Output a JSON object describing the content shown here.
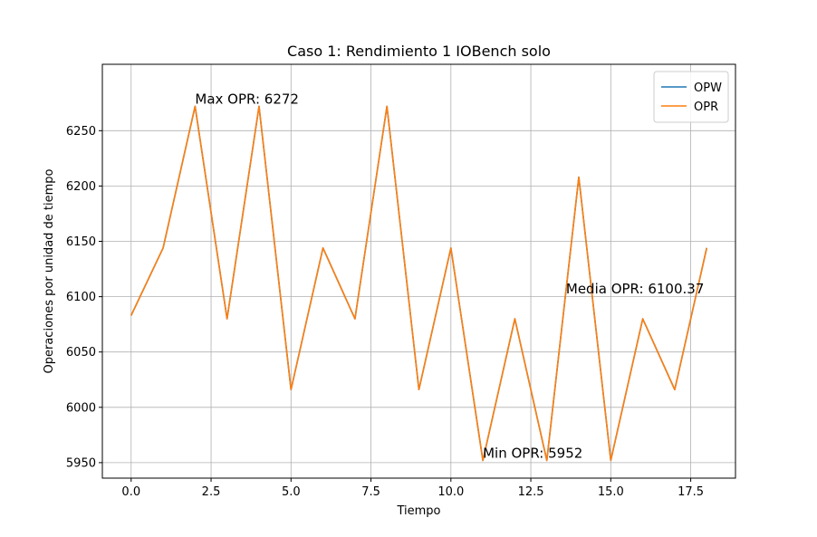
{
  "chart_data": {
    "type": "line",
    "title": "Caso 1: Rendimiento 1 IOBench solo",
    "xlabel": "Tiempo",
    "ylabel": "Operaciones por unidad de tiempo",
    "xlim": [
      -0.9,
      18.9
    ],
    "ylim": [
      5936,
      6310
    ],
    "xticks": [
      0.0,
      2.5,
      5.0,
      7.5,
      10.0,
      12.5,
      15.0,
      17.5
    ],
    "xtick_labels": [
      "0.0",
      "2.5",
      "5.0",
      "7.5",
      "10.0",
      "12.5",
      "15.0",
      "17.5"
    ],
    "yticks": [
      5950,
      6000,
      6050,
      6100,
      6150,
      6200,
      6250
    ],
    "ytick_labels": [
      "5950",
      "6000",
      "6050",
      "6100",
      "6150",
      "6200",
      "6250"
    ],
    "grid": true,
    "legend_position": "top-right",
    "x": [
      0,
      1,
      2,
      3,
      4,
      5,
      6,
      7,
      8,
      9,
      10,
      11,
      12,
      13,
      14,
      15,
      16,
      17,
      18
    ],
    "series": [
      {
        "name": "OPW",
        "color": "#1f77b4",
        "values": [
          6083,
          6144,
          6272,
          6080,
          6272,
          6016,
          6144,
          6080,
          6272,
          6016,
          6144,
          5952,
          6080,
          5952,
          6208,
          5952,
          6080,
          6016,
          6144
        ]
      },
      {
        "name": "OPR",
        "color": "#ff7f0e",
        "values": [
          6083,
          6144,
          6272,
          6080,
          6272,
          6016,
          6144,
          6080,
          6272,
          6016,
          6144,
          5952,
          6080,
          5952,
          6208,
          5952,
          6080,
          6016,
          6144
        ]
      }
    ],
    "annotations": [
      {
        "text": "Max OPR: 6272",
        "x": 2,
        "y": 6272
      },
      {
        "text": "Min OPR: 5952",
        "x": 11,
        "y": 5952
      },
      {
        "text": "Media OPR: 6100.37",
        "x": 13.6,
        "y": 6100.37
      }
    ]
  }
}
